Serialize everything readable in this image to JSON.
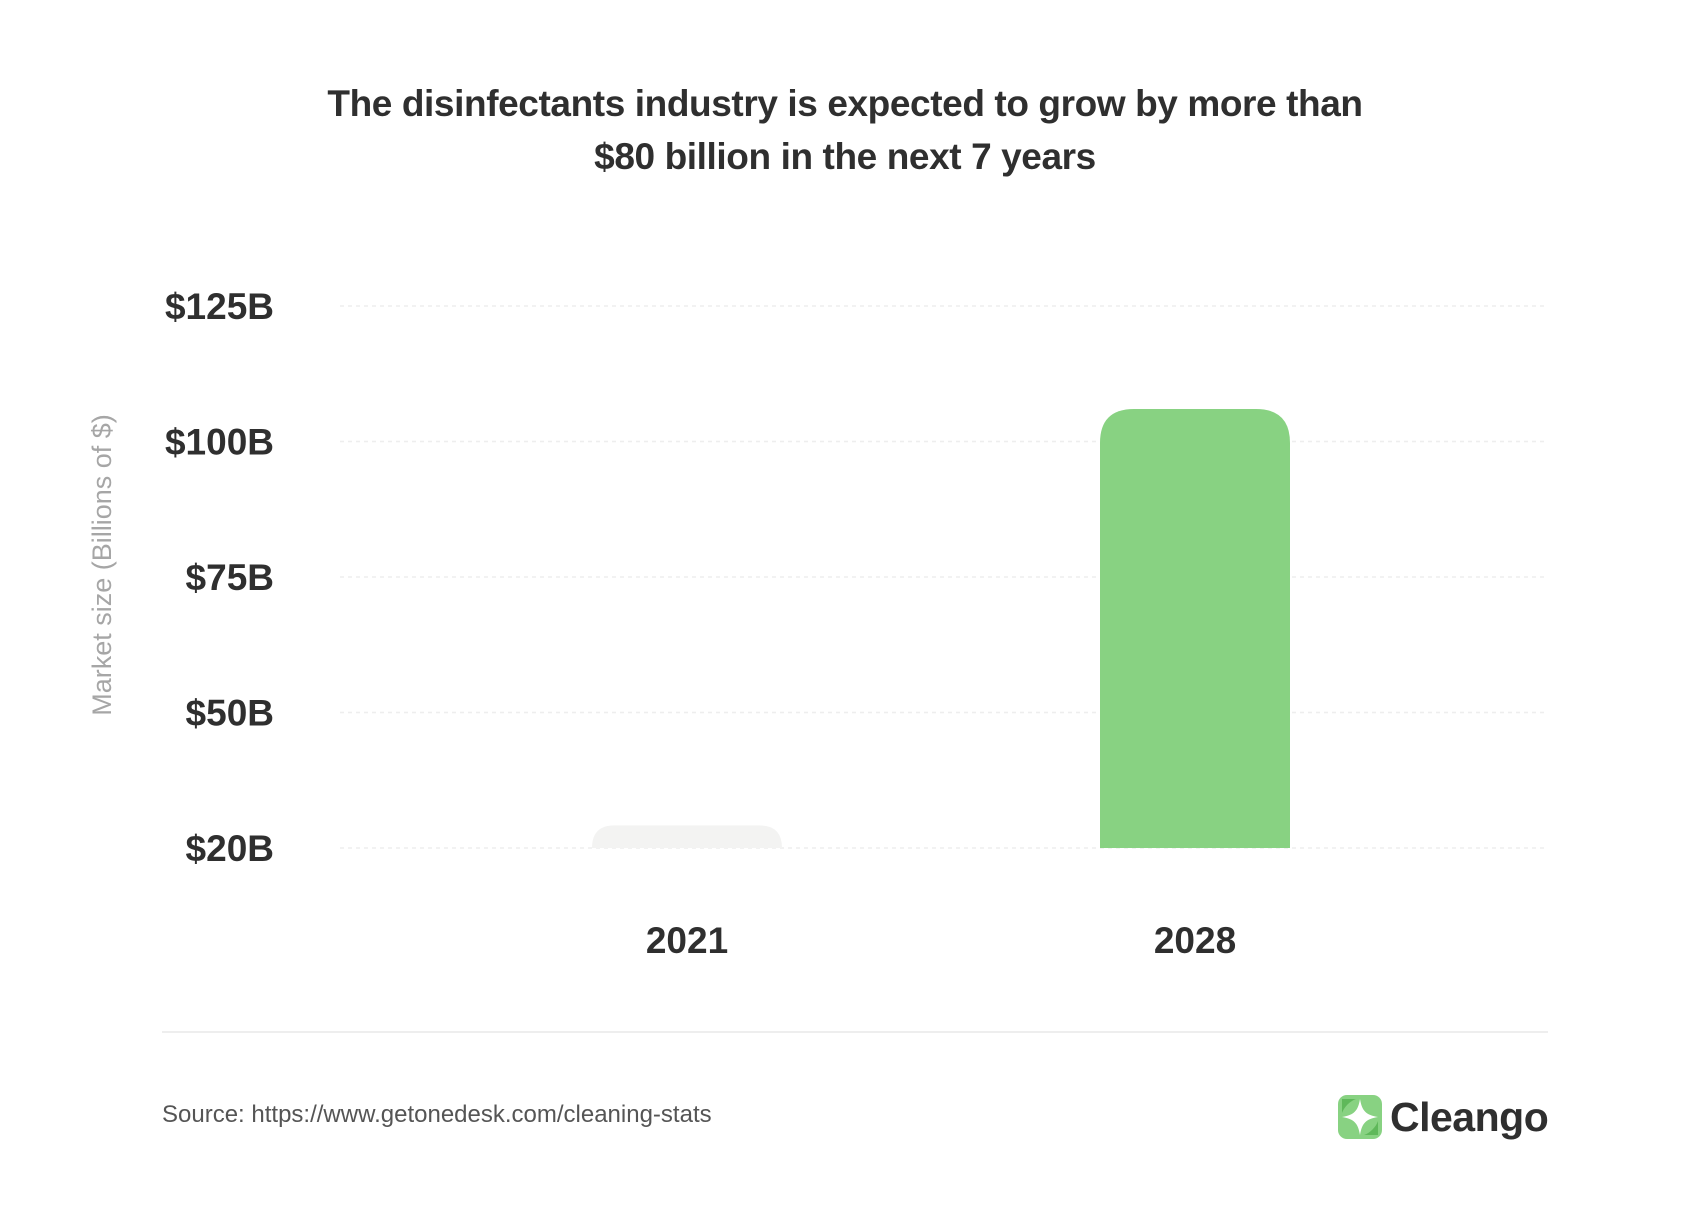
{
  "chart_data": {
    "type": "bar",
    "title_lines": [
      "The disinfectants industry is expected to grow by more than",
      "$80 billion in the next 7 years"
    ],
    "ylabel": "Market size (Billions of $)",
    "xlabel": "",
    "categories": [
      "2021",
      "2028"
    ],
    "values": [
      25,
      106
    ],
    "ylim": [
      20,
      125
    ],
    "yticks": [
      {
        "value": 20,
        "label": "$20B"
      },
      {
        "value": 50,
        "label": "$50B"
      },
      {
        "value": 75,
        "label": "$75B"
      },
      {
        "value": 100,
        "label": "$100B"
      },
      {
        "value": 125,
        "label": "$125B"
      }
    ],
    "bar_colors": [
      "#f3f3f2",
      "#88d282"
    ],
    "grid": true
  },
  "footer": {
    "source": "Source: https://www.getonedesk.com/cleaning-stats",
    "brand": "Cleango"
  },
  "colors": {
    "accent": "#88d282",
    "text": "#2f2f2f",
    "muted": "#a6a6a6"
  }
}
